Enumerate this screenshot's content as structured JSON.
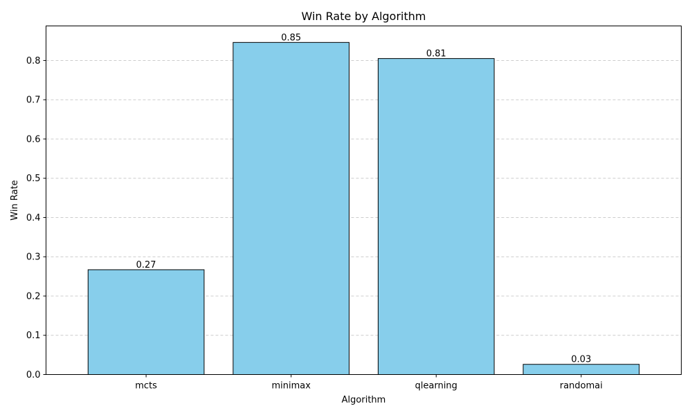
{
  "chart_data": {
    "type": "bar",
    "title": "Win Rate by Algorithm",
    "xlabel": "Algorithm",
    "ylabel": "Win Rate",
    "categories": [
      "mcts",
      "minimax",
      "qlearning",
      "randomai"
    ],
    "values": [
      0.267,
      0.846,
      0.805,
      0.026
    ],
    "data_labels": [
      "0.27",
      "0.85",
      "0.81",
      "0.03"
    ],
    "ylim": [
      0,
      0.888
    ],
    "yticks": [
      0.0,
      0.1,
      0.2,
      0.3,
      0.4,
      0.5,
      0.6,
      0.7,
      0.8
    ],
    "ytick_labels": [
      "0.0",
      "0.1",
      "0.2",
      "0.3",
      "0.4",
      "0.5",
      "0.6",
      "0.7",
      "0.8"
    ],
    "grid": "y-dashed",
    "bar_color": "#87ceeb",
    "bar_edge_color": "#000000",
    "grid_color": "#cccccc"
  }
}
